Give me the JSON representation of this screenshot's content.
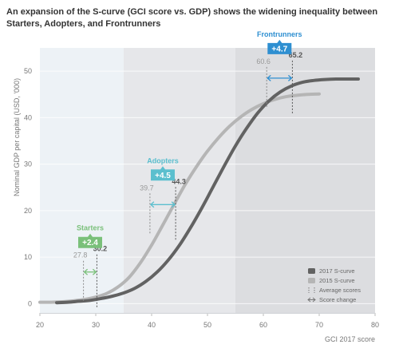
{
  "chart_data": {
    "type": "line",
    "title": "An expansion of the S-curve (GCI score vs. GDP) shows the widening inequality between Starters, Adopters, and Frontrunners",
    "xlabel": "GCI 2017 score",
    "ylabel": "Nominal GDP per capital (USD, '000)",
    "xlim": [
      20,
      80
    ],
    "ylim": [
      -2,
      55
    ],
    "xticks": [
      20,
      30,
      40,
      50,
      60,
      70,
      80
    ],
    "yticks": [
      0,
      10,
      20,
      30,
      40,
      50
    ],
    "zones": [
      {
        "name": "",
        "x0": 20,
        "x1": 35,
        "color": "#edf2f6"
      },
      {
        "name": "",
        "x0": 35,
        "x1": 55,
        "color": "#e6e7ea"
      },
      {
        "name": "",
        "x0": 55,
        "x1": 80,
        "color": "#dcdde0"
      }
    ],
    "series": [
      {
        "name": "2017 S-curve",
        "color": "#626262",
        "x": [
          23,
          25,
          27,
          29,
          31,
          33,
          35,
          37,
          39,
          41,
          43,
          45,
          47,
          49,
          51,
          53,
          55,
          57,
          59,
          61,
          63,
          65,
          67,
          69,
          71,
          73,
          75,
          77
        ],
        "y": [
          0.2,
          0.3,
          0.5,
          0.7,
          1.1,
          1.6,
          2.3,
          3.3,
          4.8,
          6.8,
          9.4,
          12.6,
          16.4,
          20.6,
          25.1,
          29.6,
          33.9,
          37.7,
          41.0,
          43.6,
          45.5,
          46.8,
          47.6,
          48.0,
          48.2,
          48.3,
          48.3,
          48.3
        ]
      },
      {
        "name": "2015 S-curve",
        "color": "#b5b5b5",
        "x": [
          20,
          22,
          24,
          26,
          28,
          30,
          32,
          34,
          36,
          38,
          40,
          42,
          44,
          46,
          48,
          50,
          52,
          54,
          56,
          58,
          60,
          62,
          64,
          66,
          68,
          70
        ],
        "y": [
          0.3,
          0.3,
          0.4,
          0.6,
          0.9,
          1.4,
          2.2,
          3.6,
          5.7,
          8.8,
          12.6,
          16.9,
          21.3,
          25.6,
          29.4,
          32.8,
          35.7,
          38.2,
          40.2,
          41.8,
          43.0,
          43.9,
          44.5,
          44.8,
          45.0,
          45.1
        ]
      }
    ],
    "groups": [
      {
        "name": "Starters",
        "change": "+2.4",
        "score_2015": 27.8,
        "score_2017": 30.2,
        "color": "#7ac07a",
        "arrow_y": 6.8
      },
      {
        "name": "Adopters",
        "change": "+4.5",
        "score_2015": 39.7,
        "score_2017": 44.3,
        "color": "#5bbfce",
        "arrow_y": 21.3
      },
      {
        "name": "Frontrunners",
        "change": "+4.7",
        "score_2015": 60.6,
        "score_2017": 65.2,
        "color": "#2e8fd1",
        "arrow_y": 48.5
      }
    ],
    "legend": {
      "placement": "bottom-right",
      "items": [
        {
          "label": "2017 S-curve",
          "kind": "swatch",
          "color": "#626262"
        },
        {
          "label": "2015 S-curve",
          "kind": "swatch",
          "color": "#b5b5b5"
        },
        {
          "label": "Average scores",
          "kind": "dashed"
        },
        {
          "label": "Score change",
          "kind": "arrow"
        }
      ]
    }
  }
}
